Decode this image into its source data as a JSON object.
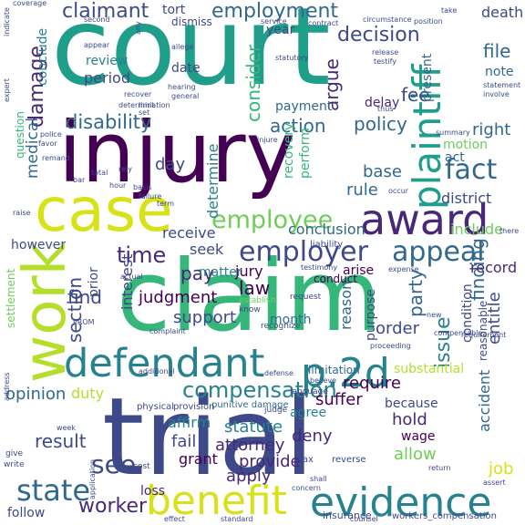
{
  "words": [
    {
      "text": "court",
      "color": "#1f9e89"
    },
    {
      "text": "injury",
      "color": "#440154"
    },
    {
      "text": "claim",
      "color": "#35b779"
    },
    {
      "text": "trial",
      "color": "#3e4989"
    },
    {
      "text": "case",
      "color": "#d8e219"
    },
    {
      "text": "work",
      "color": "#b5de2b"
    },
    {
      "text": "award",
      "color": "#482878"
    },
    {
      "text": "defendant",
      "color": "#26828e"
    },
    {
      "text": "evidence",
      "color": "#26828e"
    },
    {
      "text": "benefit",
      "color": "#d8e219"
    },
    {
      "text": "plaintiff",
      "color": "#1f9e89"
    },
    {
      "text": "appeal",
      "color": "#31688e"
    },
    {
      "text": "employer",
      "color": "#3e4989"
    },
    {
      "text": "employee",
      "color": "#6ece58"
    },
    {
      "text": "p.2d",
      "color": "#26828e"
    },
    {
      "text": "fact",
      "color": "#31688e"
    },
    {
      "text": "time",
      "color": "#482878"
    },
    {
      "text": "compensation",
      "color": "#26828e"
    },
    {
      "text": "state",
      "color": "#31688e"
    },
    {
      "text": "see",
      "color": "#3e4989"
    },
    {
      "text": "worker",
      "color": "#482878"
    },
    {
      "text": "employment",
      "color": "#31688e"
    },
    {
      "text": "decision",
      "color": "#3e4989"
    },
    {
      "text": "claimant",
      "color": "#3e4989"
    },
    {
      "text": "damage",
      "color": "#482878"
    },
    {
      "text": "medical",
      "color": "#31688e"
    },
    {
      "text": "action",
      "color": "#31688e"
    },
    {
      "text": "policy",
      "color": "#31688e"
    },
    {
      "text": "disability",
      "color": "#31688e"
    },
    {
      "text": "consider",
      "color": "#35b779"
    },
    {
      "text": "argue",
      "color": "#482878"
    },
    {
      "text": "fee",
      "color": "#3e4989"
    },
    {
      "text": "right",
      "color": "#31688e"
    },
    {
      "text": "file",
      "color": "#31688e"
    },
    {
      "text": "finding",
      "color": "#31688e"
    },
    {
      "text": "issue",
      "color": "#26828e"
    },
    {
      "text": "judgment",
      "color": "#440154"
    },
    {
      "text": "support",
      "color": "#3e4989"
    },
    {
      "text": "pay",
      "color": "#482878"
    },
    {
      "text": "find",
      "color": "#3e4989"
    },
    {
      "text": "section",
      "color": "#3e4989"
    },
    {
      "text": "result",
      "color": "#3e4989"
    },
    {
      "text": "opinion",
      "color": "#31688e"
    },
    {
      "text": "statute",
      "color": "#26828e"
    },
    {
      "text": "attorney",
      "color": "#482878"
    },
    {
      "text": "fail",
      "color": "#3e4989"
    },
    {
      "text": "affirm",
      "color": "#26828e"
    },
    {
      "text": "provide",
      "color": "#482878"
    },
    {
      "text": "apply",
      "color": "#482878"
    },
    {
      "text": "grant",
      "color": "#440154"
    },
    {
      "text": "deny",
      "color": "#482878"
    },
    {
      "text": "hold",
      "color": "#482878"
    },
    {
      "text": "suffer",
      "color": "#440154"
    },
    {
      "text": "require",
      "color": "#440154"
    },
    {
      "text": "order",
      "color": "#3e4989"
    },
    {
      "text": "party",
      "color": "#31688e"
    },
    {
      "text": "reason",
      "color": "#31688e"
    },
    {
      "text": "accident",
      "color": "#31688e"
    },
    {
      "text": "job",
      "color": "#d8e219"
    },
    {
      "text": "allow",
      "color": "#6ece58"
    },
    {
      "text": "wage",
      "color": "#440154"
    },
    {
      "text": "agree",
      "color": "#26828e"
    },
    {
      "text": "because",
      "color": "#3e4989"
    },
    {
      "text": "substantial",
      "color": "#b5de2b"
    },
    {
      "text": "entitle",
      "color": "#3e4989"
    },
    {
      "text": "record",
      "color": "#482878"
    },
    {
      "text": "include",
      "color": "#6ece58"
    },
    {
      "text": "district",
      "color": "#3e4989"
    },
    {
      "text": "motion",
      "color": "#6ece58"
    },
    {
      "text": "act",
      "color": "#31688e"
    },
    {
      "text": "note",
      "color": "#31688e"
    },
    {
      "text": "rule",
      "color": "#31688e"
    },
    {
      "text": "base",
      "color": "#31688e"
    },
    {
      "text": "conclusion",
      "color": "#31688e"
    },
    {
      "text": "determine",
      "color": "#26828e"
    },
    {
      "text": "receive",
      "color": "#3e4989"
    },
    {
      "text": "seek",
      "color": "#3e4989"
    },
    {
      "text": "day",
      "color": "#3e4989"
    },
    {
      "text": "law",
      "color": "#440154"
    },
    {
      "text": "jury",
      "color": "#440154"
    },
    {
      "text": "month",
      "color": "#31688e"
    },
    {
      "text": "matter",
      "color": "#26828e"
    },
    {
      "text": "interest",
      "color": "#3e4989"
    },
    {
      "text": "duty",
      "color": "#b5de2b"
    },
    {
      "text": "prior",
      "color": "#3e4989"
    },
    {
      "text": "period",
      "color": "#3e4989"
    },
    {
      "text": "date",
      "color": "#3e4989"
    },
    {
      "text": "review",
      "color": "#26828e"
    },
    {
      "text": "conclude",
      "color": "#26828e"
    },
    {
      "text": "year",
      "color": "#3e4989"
    },
    {
      "text": "tort",
      "color": "#3e4989"
    },
    {
      "text": "dismiss",
      "color": "#3e4989"
    },
    {
      "text": "payment",
      "color": "#31688e"
    },
    {
      "text": "delay",
      "color": "#482878"
    },
    {
      "text": "present",
      "color": "#31688e"
    },
    {
      "text": "death",
      "color": "#3e4989"
    },
    {
      "text": "perform",
      "color": "#35b779"
    },
    {
      "text": "recovery",
      "color": "#35b779"
    },
    {
      "text": "arise",
      "color": "#440154"
    },
    {
      "text": "condition",
      "color": "#3e4989"
    },
    {
      "text": "reasonable",
      "color": "#3e4989"
    },
    {
      "text": "limitation",
      "color": "#31688e"
    },
    {
      "text": "however",
      "color": "#3e4989"
    },
    {
      "text": "question",
      "color": "#35b779"
    },
    {
      "text": "purpose",
      "color": "#3e4989"
    },
    {
      "text": "settlement",
      "color": "#6ece58"
    },
    {
      "text": "loss",
      "color": "#482878"
    },
    {
      "text": "follow",
      "color": "#3e4989"
    },
    {
      "text": "insurance",
      "color": "#3e4989"
    },
    {
      "text": "workers_compensation",
      "color": "#3e4989"
    },
    {
      "text": "conduct",
      "color": "#440154"
    },
    {
      "text": "liability",
      "color": "#3e4989"
    },
    {
      "text": "testimony",
      "color": "#3e4989"
    },
    {
      "text": "expense",
      "color": "#3e4989"
    },
    {
      "text": "punitive damage",
      "color": "#31688e"
    },
    {
      "text": "physical",
      "color": "#3e4989"
    },
    {
      "text": "provision",
      "color": "#3e4989"
    },
    {
      "text": "additional",
      "color": "#3e4989"
    },
    {
      "text": "actual",
      "color": "#3e4989"
    },
    {
      "text": "defense",
      "color": "#3e4989"
    },
    {
      "text": "know",
      "color": "#3e4989"
    },
    {
      "text": "establish",
      "color": "#6ece58"
    },
    {
      "text": "recognize",
      "color": "#3e4989"
    },
    {
      "text": "request",
      "color": "#3e4989"
    },
    {
      "text": "reverse",
      "color": "#3e4989"
    },
    {
      "text": "language",
      "color": "#3e4989"
    },
    {
      "text": "judge",
      "color": "#3e4989"
    },
    {
      "text": "tax",
      "color": "#3e4989"
    },
    {
      "text": "cost",
      "color": "#3e4989"
    },
    {
      "text": "give",
      "color": "#3e4989"
    },
    {
      "text": "write",
      "color": "#3e4989"
    },
    {
      "text": "week",
      "color": "#3e4989"
    },
    {
      "text": "effect",
      "color": "#3e4989"
    },
    {
      "text": "standard",
      "color": "#3e4989"
    },
    {
      "text": "counsel",
      "color": "#3e4989"
    },
    {
      "text": "shall",
      "color": "#3e4989"
    },
    {
      "text": "return",
      "color": "#3e4989"
    },
    {
      "text": "concern",
      "color": "#3e4989"
    },
    {
      "text": "assert",
      "color": "#3e4989"
    },
    {
      "text": "new",
      "color": "#3e4989"
    },
    {
      "text": "statement",
      "color": "#3e4989"
    },
    {
      "text": "involve",
      "color": "#3e4989"
    },
    {
      "text": "contract",
      "color": "#3e4989"
    },
    {
      "text": "service",
      "color": "#3e4989"
    },
    {
      "text": "statutory",
      "color": "#3e4989"
    },
    {
      "text": "allege",
      "color": "#3e4989"
    },
    {
      "text": "hearing",
      "color": "#3e4989"
    },
    {
      "text": "general",
      "color": "#3e4989"
    },
    {
      "text": "recover",
      "color": "#3e4989"
    },
    {
      "text": "second",
      "color": "#3e4989"
    },
    {
      "text": "take",
      "color": "#3e4989"
    },
    {
      "text": "position",
      "color": "#3e4989"
    },
    {
      "text": "circumstance",
      "color": "#3e4989"
    },
    {
      "text": "release",
      "color": "#3e4989"
    },
    {
      "text": "testify",
      "color": "#3e4989"
    },
    {
      "text": "thus",
      "color": "#3e4989"
    },
    {
      "text": "term",
      "color": "#3e4989"
    },
    {
      "text": "raise",
      "color": "#3e4989"
    },
    {
      "text": "hour",
      "color": "#3e4989"
    },
    {
      "text": "rely",
      "color": "#3e4989"
    },
    {
      "text": "basis",
      "color": "#3e4989"
    },
    {
      "text": "failure",
      "color": "#3e4989"
    },
    {
      "text": "total",
      "color": "#3e4989"
    },
    {
      "text": "favor",
      "color": "#3e4989"
    },
    {
      "text": "police",
      "color": "#3e4989"
    },
    {
      "text": "remand",
      "color": "#3e4989"
    },
    {
      "text": "injure",
      "color": "#3e4989"
    },
    {
      "text": "summary",
      "color": "#3e4989"
    },
    {
      "text": "occur",
      "color": "#3e4989"
    },
    {
      "text": "bar",
      "color": "#3e4989"
    },
    {
      "text": "limit",
      "color": "#3e4989"
    },
    {
      "text": "set",
      "color": "#3e4989"
    },
    {
      "text": "address",
      "color": "#3e4989"
    },
    {
      "text": "any",
      "color": "#3e4989"
    },
    {
      "text": "indicate",
      "color": "#3e4989"
    },
    {
      "text": "coverage",
      "color": "#3e4989"
    },
    {
      "text": "expert",
      "color": "#3e4989"
    },
    {
      "text": "compensable",
      "color": "#3e4989"
    },
    {
      "text": "proceeding",
      "color": "#3e4989"
    },
    {
      "text": "complaint",
      "color": "#3e4989"
    },
    {
      "text": "application",
      "color": "#3e4989"
    },
    {
      "text": "determination",
      "color": "#3e4989"
    },
    {
      "text": "appear",
      "color": "#3e4989"
    },
    {
      "text": "believe",
      "color": "#3e4989"
    },
    {
      "text": "PROM",
      "color": "#3e4989"
    },
    {
      "text": "there",
      "color": "#3e4989"
    },
    {
      "text": "requirement",
      "color": "#3e4989"
    }
  ]
}
